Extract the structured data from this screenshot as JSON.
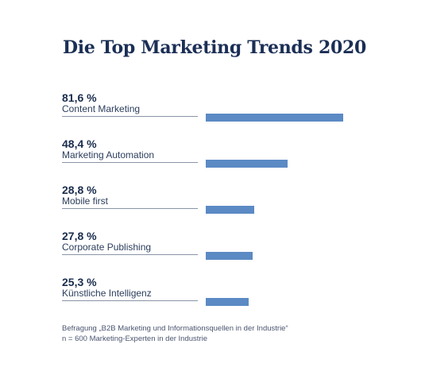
{
  "chart_data": {
    "type": "bar",
    "title": "Die Top Marketing Trends 2020",
    "categories": [
      "Content Marketing",
      "Marketing Automation",
      "Mobile first",
      "Corporate Publishing",
      "Künstliche Intelligenz"
    ],
    "values": [
      81.6,
      48.4,
      28.8,
      27.8,
      25.3
    ],
    "value_labels": [
      "81,6 %",
      "48,4 %",
      "28,8 %",
      "27,8 %",
      "25,3 %"
    ],
    "orientation": "horizontal",
    "xlim": [
      0,
      100
    ],
    "bar_color": "#5b8ac4",
    "legend": false,
    "grid": false
  },
  "footnote": {
    "line1": "Befragung „B2B Marketing und Informationsquellen in der Industrie“",
    "line2": "n = 600 Marketing-Experten in der Industrie"
  }
}
